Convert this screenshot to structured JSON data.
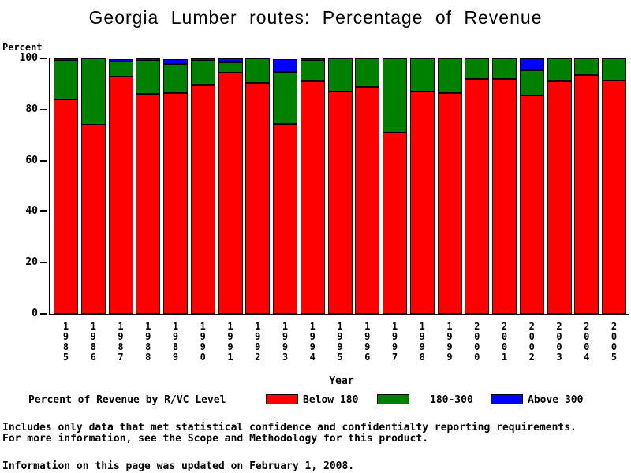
{
  "title": "Georgia Lumber routes: Percentage of Revenue",
  "y_axis": {
    "label": "Percent",
    "ticks": [
      100,
      80,
      60,
      40,
      20,
      0
    ]
  },
  "x_axis": {
    "label": "Year"
  },
  "legend": {
    "title": "Percent of Revenue by R/VC Level",
    "items": [
      {
        "label": "Below 180",
        "color": "#ff0000"
      },
      {
        "label": "180-300",
        "color": "#008000"
      },
      {
        "label": "Above 300",
        "color": "#0000ff"
      }
    ]
  },
  "footnotes": {
    "line1": "Includes only data that met statistical confidence and confidentialty reporting requirements.",
    "line2": "For more information, see the Scope and Methodology for this product.",
    "updated": "Information on this page was updated on February 1, 2008."
  },
  "chart_data": {
    "type": "bar",
    "stacked": true,
    "title": "Georgia Lumber routes: Percentage of Revenue",
    "xlabel": "Year",
    "ylabel": "Percent",
    "ylim": [
      0,
      100
    ],
    "grid": false,
    "legend_position": "bottom",
    "categories": [
      "1985",
      "1986",
      "1987",
      "1988",
      "1989",
      "1990",
      "1991",
      "1992",
      "1993",
      "1994",
      "1995",
      "1996",
      "1997",
      "1998",
      "1999",
      "2000",
      "2001",
      "2002",
      "2003",
      "2004",
      "2005"
    ],
    "series": [
      {
        "name": "Below 180",
        "color": "#ff0000",
        "values": [
          84,
          74,
          93,
          86,
          86.5,
          89.5,
          94.5,
          90.5,
          74.5,
          91,
          87,
          89,
          71,
          87,
          86.5,
          92,
          92,
          85.5,
          91,
          93.5,
          91.5
        ]
      },
      {
        "name": "180-300",
        "color": "#008000",
        "values": [
          15,
          26,
          6,
          13,
          11.5,
          9.5,
          4,
          9.5,
          20.5,
          8,
          13,
          11,
          29,
          13,
          13.5,
          8,
          8,
          10,
          9,
          6.5,
          8.5
        ]
      },
      {
        "name": "Above 300",
        "color": "#0000ff",
        "values": [
          1,
          0,
          1,
          1,
          2,
          1,
          1.5,
          0,
          5,
          1,
          0,
          0,
          0,
          0,
          0,
          0,
          0,
          4.5,
          0,
          0,
          0
        ]
      }
    ]
  }
}
